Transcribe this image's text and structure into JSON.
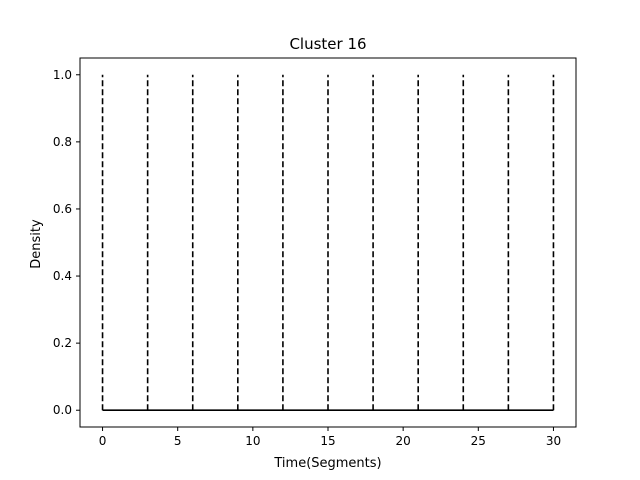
{
  "chart_data": {
    "type": "line",
    "title": "Cluster 16",
    "xlabel": "Time(Segments)",
    "ylabel": "Density",
    "xlim": [
      -1.5,
      31.5
    ],
    "ylim": [
      -0.05,
      1.05
    ],
    "x_ticks": [
      0,
      5,
      10,
      15,
      20,
      25,
      30
    ],
    "y_ticks": [
      0.0,
      0.2,
      0.4,
      0.6,
      0.8,
      1.0
    ],
    "x_tick_labels": [
      "0",
      "5",
      "10",
      "15",
      "20",
      "25",
      "30"
    ],
    "y_tick_labels": [
      "0.0",
      "0.2",
      "0.4",
      "0.6",
      "0.8",
      "1.0"
    ],
    "grid": false,
    "series": [
      {
        "style": "solid",
        "color": "#000000",
        "x": [
          0,
          30
        ],
        "y": [
          0.0,
          0.0
        ]
      }
    ],
    "vlines": {
      "style": "dashed",
      "color": "#000000",
      "x": [
        0,
        3,
        6,
        9,
        12,
        15,
        18,
        21,
        24,
        27,
        30
      ],
      "ymin": 0.0,
      "ymax": 1.0
    }
  }
}
